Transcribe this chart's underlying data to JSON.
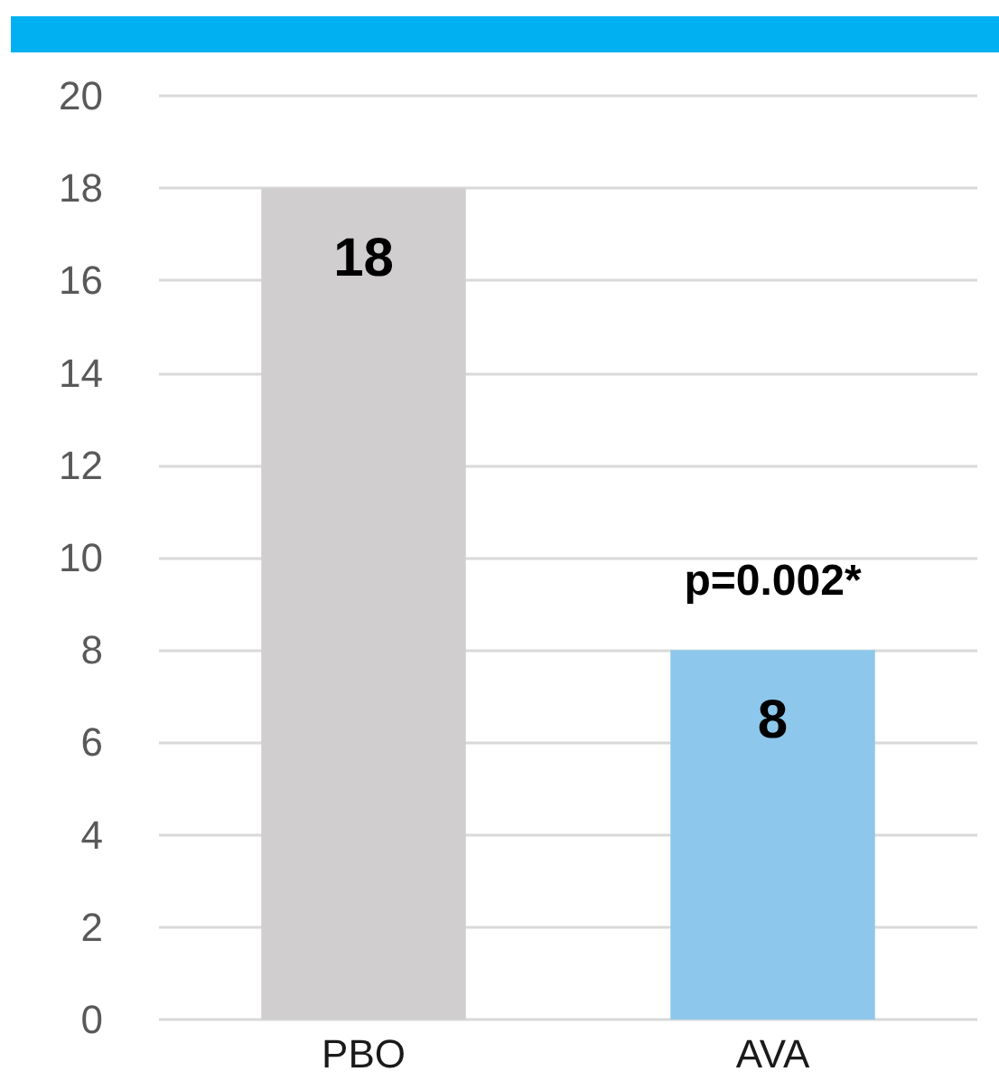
{
  "chart_data": {
    "type": "bar",
    "categories": [
      "PBO",
      "AVA"
    ],
    "values": [
      18,
      8
    ],
    "colors": [
      "#d0cecf",
      "#8dc8ec"
    ],
    "ylim": [
      0,
      20
    ],
    "yticks": [
      0,
      2,
      4,
      6,
      8,
      10,
      12,
      14,
      16,
      18,
      20
    ],
    "grid": "y",
    "data_labels": true,
    "annotations": [
      {
        "text": "p=0.002*",
        "x": "AVA",
        "y": 8
      }
    ]
  }
}
